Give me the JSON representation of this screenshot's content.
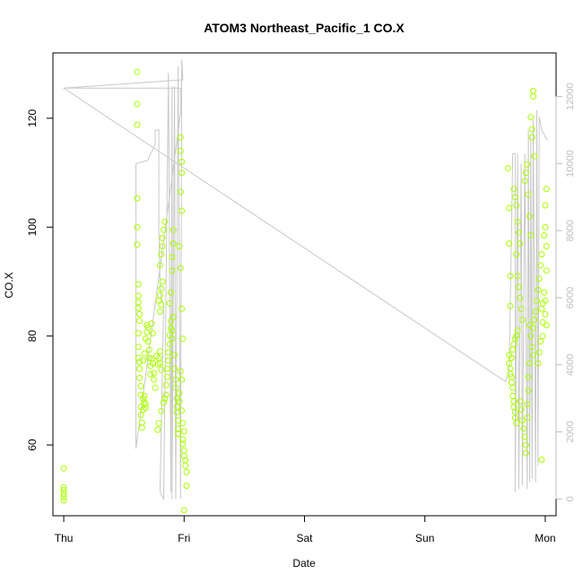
{
  "chart_data": {
    "type": "scatter",
    "title": "ATOM3 Northeast_Pacific_1 CO.X",
    "xlabel": "Date",
    "ylabel": "CO.X",
    "x_tick_labels": [
      "Thu",
      "Fri",
      "Sat",
      "Sun",
      "Mon"
    ],
    "x_range_days": [
      -0.09,
      4.09
    ],
    "ylim": [
      47,
      132
    ],
    "y_ticks": [
      60,
      80,
      100,
      120
    ],
    "y2lim": [
      -500,
      13300
    ],
    "y2_ticks": [
      0,
      2000,
      4000,
      6000,
      8000,
      10000,
      12000
    ],
    "grid": false,
    "legend": "none",
    "colors": {
      "points": "#aaff00",
      "line": "#c8c8c8",
      "right_axis": "#bebebe"
    },
    "series": [
      {
        "style": "points",
        "axis": "left",
        "points": [
          [
            0.0,
            55.7
          ],
          [
            0.0,
            52.2
          ],
          [
            0.0,
            51.7
          ],
          [
            0.0,
            51.0
          ],
          [
            0.0,
            50.4
          ],
          [
            0.0,
            49.8
          ],
          [
            0.61,
            128.5
          ],
          [
            0.61,
            122.6
          ],
          [
            0.61,
            118.8
          ],
          [
            0.61,
            105.3
          ],
          [
            0.61,
            100.0
          ],
          [
            0.61,
            96.8
          ],
          [
            0.62,
            89.5
          ],
          [
            0.62,
            87.4
          ],
          [
            0.62,
            86.2
          ],
          [
            0.62,
            85.1
          ],
          [
            0.63,
            84.0
          ],
          [
            0.63,
            82.8
          ],
          [
            0.62,
            80.5
          ],
          [
            0.62,
            78.0
          ],
          [
            0.62,
            76.0
          ],
          [
            0.63,
            75.2
          ],
          [
            0.63,
            74.0
          ],
          [
            0.63,
            72.3
          ],
          [
            0.64,
            70.8
          ],
          [
            0.64,
            69.2
          ],
          [
            0.64,
            67.0
          ],
          [
            0.64,
            65.5
          ],
          [
            0.65,
            64.1
          ],
          [
            0.65,
            63.2
          ],
          [
            0.66,
            68.5
          ],
          [
            0.66,
            66.5
          ],
          [
            0.67,
            67.8
          ],
          [
            0.67,
            69.0
          ],
          [
            0.68,
            66.8
          ],
          [
            0.68,
            67.5
          ],
          [
            0.66,
            75.5
          ],
          [
            0.67,
            76.8
          ],
          [
            0.68,
            79.5
          ],
          [
            0.69,
            80.7
          ],
          [
            0.69,
            82.0
          ],
          [
            0.7,
            81.6
          ],
          [
            0.7,
            79.0
          ],
          [
            0.71,
            77.5
          ],
          [
            0.71,
            76.0
          ],
          [
            0.72,
            74.5
          ],
          [
            0.72,
            73.0
          ],
          [
            0.73,
            75.8
          ],
          [
            0.73,
            82.3
          ],
          [
            0.74,
            80.5
          ],
          [
            0.74,
            75.0
          ],
          [
            0.75,
            73.2
          ],
          [
            0.75,
            72.0
          ],
          [
            0.76,
            70.5
          ],
          [
            0.77,
            76.3
          ],
          [
            0.78,
            74.8
          ],
          [
            0.79,
            76.0
          ],
          [
            0.8,
            77.2
          ],
          [
            0.8,
            75.0
          ],
          [
            0.81,
            73.8
          ],
          [
            0.79,
            86.5
          ],
          [
            0.8,
            87.5
          ],
          [
            0.81,
            88.7
          ],
          [
            0.82,
            90.0
          ],
          [
            0.8,
            93.0
          ],
          [
            0.81,
            95.0
          ],
          [
            0.82,
            96.5
          ],
          [
            0.82,
            98.0
          ],
          [
            0.83,
            99.5
          ],
          [
            0.84,
            101.0
          ],
          [
            0.8,
            84.5
          ],
          [
            0.81,
            85.8
          ],
          [
            0.78,
            62.8
          ],
          [
            0.79,
            64.0
          ],
          [
            0.81,
            66.2
          ],
          [
            0.83,
            67.8
          ],
          [
            0.84,
            68.5
          ],
          [
            0.85,
            69.2
          ],
          [
            0.85,
            71.0
          ],
          [
            0.86,
            72.5
          ],
          [
            0.86,
            74.0
          ],
          [
            0.87,
            75.5
          ],
          [
            0.87,
            77.0
          ],
          [
            0.88,
            78.5
          ],
          [
            0.88,
            80.2
          ],
          [
            0.89,
            81.5
          ],
          [
            0.89,
            82.7
          ],
          [
            0.9,
            81.0
          ],
          [
            0.9,
            79.5
          ],
          [
            0.91,
            83.5
          ],
          [
            0.88,
            86.0
          ],
          [
            0.89,
            88.0
          ],
          [
            0.9,
            92.0
          ],
          [
            0.9,
            94.5
          ],
          [
            0.91,
            97.0
          ],
          [
            0.91,
            99.5
          ],
          [
            0.92,
            76.5
          ],
          [
            0.92,
            74.0
          ],
          [
            0.93,
            72.0
          ],
          [
            0.93,
            70.5
          ],
          [
            0.94,
            68.5
          ],
          [
            0.94,
            67.0
          ],
          [
            0.94,
            66.0
          ],
          [
            0.95,
            64.5
          ],
          [
            0.95,
            63.0
          ],
          [
            0.95,
            62.0
          ],
          [
            0.96,
            68.0
          ],
          [
            0.96,
            69.5
          ],
          [
            0.97,
            116.5
          ],
          [
            0.97,
            114.0
          ],
          [
            0.98,
            112.0
          ],
          [
            0.98,
            110.0
          ],
          [
            0.97,
            106.5
          ],
          [
            0.98,
            103.0
          ],
          [
            0.96,
            96.5
          ],
          [
            0.97,
            92.5
          ],
          [
            0.98,
            85.0
          ],
          [
            0.99,
            79.5
          ],
          [
            0.97,
            73.5
          ],
          [
            0.98,
            72.0
          ],
          [
            0.99,
            61.0
          ],
          [
            0.99,
            60.2
          ],
          [
            1.0,
            59.0
          ],
          [
            1.0,
            58.0
          ],
          [
            1.01,
            57.2
          ],
          [
            1.01,
            56.2
          ],
          [
            1.02,
            55.0
          ],
          [
            1.02,
            52.5
          ],
          [
            1.0,
            48.0
          ],
          [
            0.99,
            64.0
          ],
          [
            0.98,
            66.3
          ],
          [
            1.0,
            62.5
          ],
          [
            3.69,
            110.8
          ],
          [
            3.7,
            103.5
          ],
          [
            3.7,
            97.0
          ],
          [
            3.71,
            91.0
          ],
          [
            3.71,
            85.5
          ],
          [
            3.7,
            76.5
          ],
          [
            3.7,
            75.0
          ],
          [
            3.71,
            74.0
          ],
          [
            3.71,
            73.0
          ],
          [
            3.72,
            72.5
          ],
          [
            3.72,
            71.5
          ],
          [
            3.73,
            70.5
          ],
          [
            3.73,
            69.0
          ],
          [
            3.74,
            68.0
          ],
          [
            3.74,
            67.0
          ],
          [
            3.75,
            66.0
          ],
          [
            3.75,
            65.0
          ],
          [
            3.76,
            64.0
          ],
          [
            3.72,
            76.0
          ],
          [
            3.73,
            77.5
          ],
          [
            3.74,
            78.5
          ],
          [
            3.75,
            79.5
          ],
          [
            3.76,
            80.0
          ],
          [
            3.77,
            81.0
          ],
          [
            3.74,
            107.0
          ],
          [
            3.75,
            105.5
          ],
          [
            3.76,
            104.0
          ],
          [
            3.77,
            101.0
          ],
          [
            3.78,
            99.0
          ],
          [
            3.79,
            97.0
          ],
          [
            3.76,
            95.0
          ],
          [
            3.77,
            91.0
          ],
          [
            3.78,
            89.0
          ],
          [
            3.79,
            87.0
          ],
          [
            3.8,
            85.0
          ],
          [
            3.81,
            83.0
          ],
          [
            3.79,
            68.0
          ],
          [
            3.8,
            66.5
          ],
          [
            3.81,
            64.5
          ],
          [
            3.82,
            63.0
          ],
          [
            3.83,
            61.5
          ],
          [
            3.84,
            60.0
          ],
          [
            3.84,
            58.5
          ],
          [
            3.85,
            65.0
          ],
          [
            3.85,
            67.5
          ],
          [
            3.86,
            70.0
          ],
          [
            3.86,
            72.5
          ],
          [
            3.87,
            75.0
          ],
          [
            3.83,
            108.5
          ],
          [
            3.84,
            110.0
          ],
          [
            3.85,
            111.5
          ],
          [
            3.86,
            106.0
          ],
          [
            3.87,
            102.0
          ],
          [
            3.88,
            98.5
          ],
          [
            3.87,
            82.0
          ],
          [
            3.88,
            80.0
          ],
          [
            3.89,
            78.0
          ],
          [
            3.9,
            76.5
          ],
          [
            3.9,
            81.5
          ],
          [
            3.91,
            83.0
          ],
          [
            3.88,
            120.2
          ],
          [
            3.89,
            118.0
          ],
          [
            3.89,
            116.5
          ],
          [
            3.9,
            124.0
          ],
          [
            3.9,
            125.0
          ],
          [
            3.91,
            113.0
          ],
          [
            3.92,
            84.5
          ],
          [
            3.93,
            86.5
          ],
          [
            3.94,
            88.5
          ],
          [
            3.95,
            90.5
          ],
          [
            3.96,
            93.0
          ],
          [
            3.97,
            95.0
          ],
          [
            3.94,
            75.0
          ],
          [
            3.95,
            77.0
          ],
          [
            3.96,
            79.0
          ],
          [
            3.97,
            57.3
          ],
          [
            3.98,
            82.5
          ],
          [
            3.98,
            86.0
          ],
          [
            3.99,
            98.5
          ],
          [
            4.0,
            100.0
          ],
          [
            4.0,
            104.0
          ],
          [
            4.01,
            107.0
          ],
          [
            4.01,
            96.5
          ],
          [
            4.01,
            92.0
          ],
          [
            3.99,
            88.0
          ],
          [
            4.0,
            86.5
          ],
          [
            4.0,
            84.0
          ],
          [
            4.01,
            82.0
          ],
          [
            3.98,
            80.0
          ],
          [
            3.97,
            85.0
          ]
        ]
      },
      {
        "style": "line",
        "axis": "right",
        "points": [
          [
            0.0,
            12250
          ],
          [
            0.62,
            12250
          ],
          [
            0.97,
            12250
          ],
          [
            0.97,
            11500
          ],
          [
            0.6,
            1500
          ],
          [
            0.6,
            10000
          ],
          [
            0.7,
            10100
          ],
          [
            0.72,
            10300
          ],
          [
            0.74,
            10400
          ],
          [
            0.75,
            10500
          ],
          [
            0.76,
            10600
          ],
          [
            0.76,
            11000
          ],
          [
            0.79,
            11000
          ],
          [
            0.79,
            8000
          ],
          [
            0.8,
            6500
          ],
          [
            0.81,
            6000
          ],
          [
            0.82,
            5900
          ],
          [
            0.83,
            5800
          ],
          [
            0.8,
            200
          ],
          [
            0.83,
            0
          ],
          [
            0.87,
            12700
          ],
          [
            0.89,
            200
          ],
          [
            0.9,
            12300
          ],
          [
            0.9,
            0
          ],
          [
            0.92,
            12300
          ],
          [
            0.93,
            0
          ],
          [
            0.95,
            12900
          ],
          [
            0.97,
            0
          ],
          [
            0.98,
            13100
          ],
          [
            0.99,
            12500
          ],
          [
            0.0,
            12250
          ],
          [
            3.67,
            3500
          ],
          [
            3.7,
            3800
          ],
          [
            3.73,
            10300
          ],
          [
            3.75,
            10300
          ],
          [
            3.75,
            200
          ],
          [
            3.77,
            10300
          ],
          [
            3.78,
            300
          ],
          [
            3.8,
            10000
          ],
          [
            3.81,
            400
          ],
          [
            3.83,
            10300
          ],
          [
            3.85,
            300
          ],
          [
            3.86,
            11000
          ],
          [
            3.87,
            500
          ],
          [
            3.88,
            10800
          ],
          [
            3.89,
            600
          ],
          [
            3.9,
            11300
          ],
          [
            3.92,
            500
          ],
          [
            3.93,
            11600
          ],
          [
            3.94,
            1000
          ],
          [
            3.95,
            11400
          ],
          [
            3.97,
            11000
          ],
          [
            4.0,
            10800
          ],
          [
            4.02,
            10700
          ]
        ]
      }
    ]
  }
}
